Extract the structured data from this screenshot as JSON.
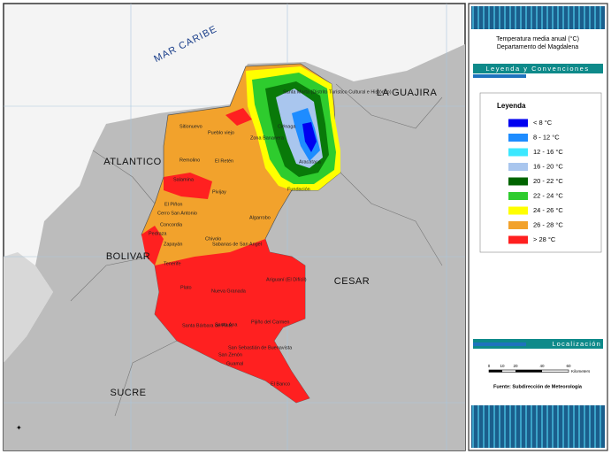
{
  "map": {
    "sea_label": "MAR CARIBE",
    "region_labels": [
      "LA GUAJIRA",
      "ATLANTICO",
      "BOLIVAR",
      "CESAR",
      "SUCRE"
    ],
    "towns": [
      "Santa Marta (Distrito Turístico Cultural e Histórico)",
      "Ciénaga",
      "Sitionuevo",
      "Pueblo viejo",
      "Zona Bananera",
      "Remolino",
      "El Retén",
      "Aracataca",
      "Fundación",
      "Salamina",
      "Pivijay",
      "El Piñon",
      "Cerro San Antonio",
      "Concordia",
      "Pedraza",
      "Algarrobo",
      "Zapayán",
      "Chivolo",
      "Sabanas de San Angel",
      "Tenerife",
      "Plato",
      "Nueva Granada",
      "Ariguaní (El Difícil)",
      "Santa Bárbara de Pinto",
      "Santa Ana",
      "Pijiño del Carmen",
      "San Sebastián de Buenavista",
      "San Zenón",
      "Guamal",
      "El Banco"
    ]
  },
  "panel": {
    "title": "Temperatura media anual (°C)",
    "subtitle": "Departamento del Magdalena",
    "legend_header": "Leyenda y Convenciones",
    "legend_title": "Leyenda",
    "legend": [
      {
        "label": "< 8 °C",
        "color": "#0000f0"
      },
      {
        "label": "8 - 12 °C",
        "color": "#1e8cff"
      },
      {
        "label": "12 - 16 °C",
        "color": "#3ce8ff"
      },
      {
        "label": "16 - 20 °C",
        "color": "#a9c6ee"
      },
      {
        "label": "20 - 22 °C",
        "color": "#006400"
      },
      {
        "label": "22 - 24 °C",
        "color": "#2ecc2e"
      },
      {
        "label": "24 - 26 °C",
        "color": "#ffff00"
      },
      {
        "label": "26 - 28 °C",
        "color": "#f2a22c"
      },
      {
        "label": "> 28 °C",
        "color": "#ff2020"
      }
    ],
    "location_header": "Localización",
    "scale_ticks": [
      "0",
      "10",
      "20",
      "40",
      "60"
    ],
    "scale_unit": "Kilometers",
    "source": "Fuente: Subdirección de Meteorología"
  }
}
